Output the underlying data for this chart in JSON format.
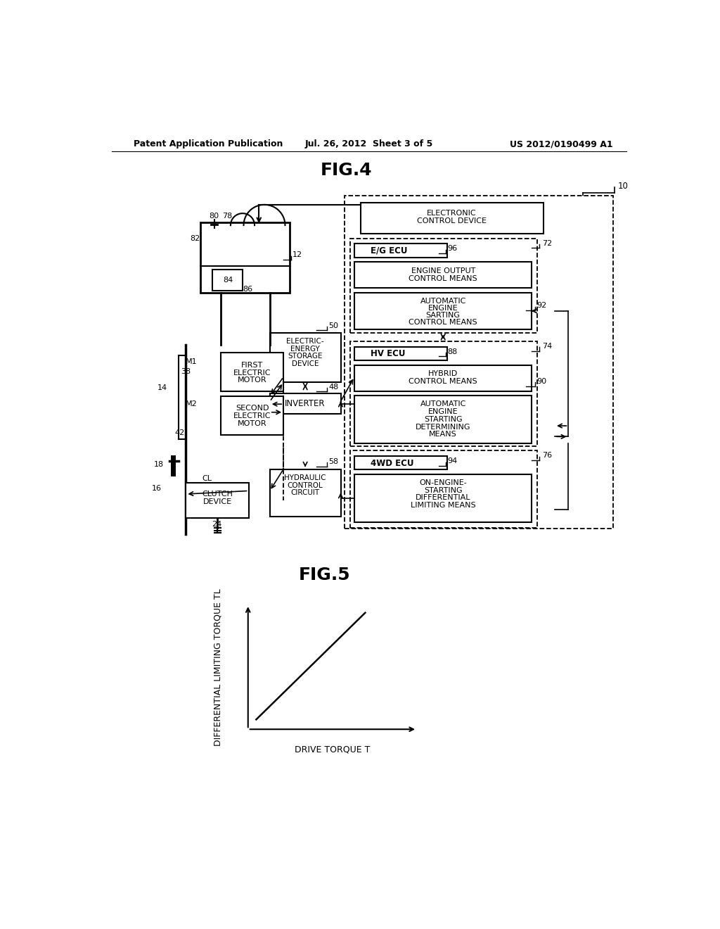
{
  "bg_color": "#ffffff",
  "header_left": "Patent Application Publication",
  "header_center": "Jul. 26, 2012  Sheet 3 of 5",
  "header_right": "US 2012/0190499 A1",
  "fig4_title": "FIG.4",
  "fig5_title": "FIG.5",
  "fig5_xlabel": "DRIVE TORQUE T",
  "fig5_ylabel": "DIFFERENTIAL LIMITING TORQUE TL"
}
